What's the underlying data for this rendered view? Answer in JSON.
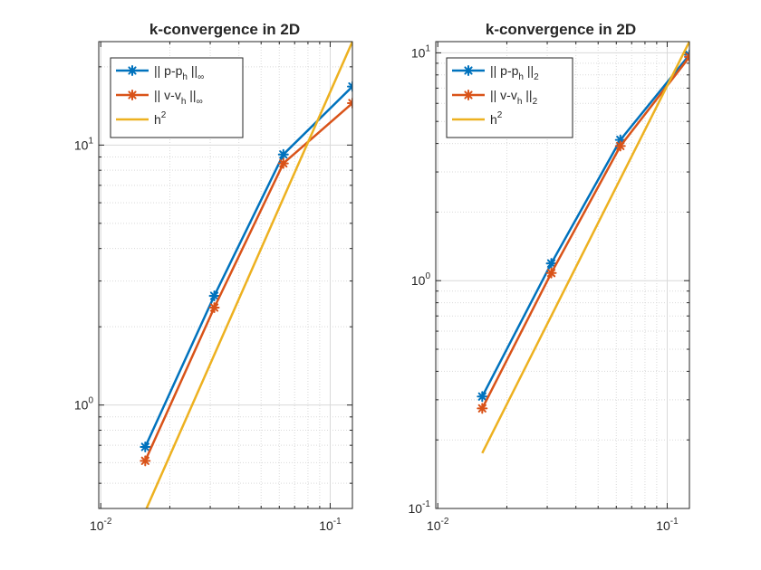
{
  "figure": {
    "colors": {
      "series_1": "#0072BD",
      "series_2": "#D95319",
      "series_3": "#EDB120",
      "grid": "#d9d9d9",
      "axis": "#262626"
    }
  },
  "chart_data": [
    {
      "type": "line",
      "title": "k-convergence in 2D",
      "xlabel": "",
      "ylabel": "",
      "xscale": "log",
      "yscale": "log",
      "xlim": [
        0.0098,
        0.125
      ],
      "ylim": [
        0.4,
        25
      ],
      "grid": true,
      "minor_grid": true,
      "legend_position": "top-left",
      "x_ticks": [
        {
          "label_base": "10",
          "label_exp": "-2",
          "value": 0.01
        },
        {
          "label_base": "10",
          "label_exp": "-1",
          "value": 0.1
        }
      ],
      "y_ticks": [
        {
          "label_base": "10",
          "label_exp": "0",
          "value": 1
        },
        {
          "label_base": "10",
          "label_exp": "1",
          "value": 10
        }
      ],
      "series": [
        {
          "name_prefix": "|| p-p",
          "name_sub": "h",
          "name_suffix": " ||",
          "name_norm": "∞",
          "marker": "asterisk",
          "color_key": "series_1",
          "x": [
            0.015625,
            0.03125,
            0.0625,
            0.125
          ],
          "y": [
            0.69,
            2.63,
            9.2,
            16.8
          ]
        },
        {
          "name_prefix": "|| v-v",
          "name_sub": "h",
          "name_suffix": " ||",
          "name_norm": "∞",
          "marker": "asterisk",
          "color_key": "series_2",
          "x": [
            0.015625,
            0.03125,
            0.0625,
            0.125
          ],
          "y": [
            0.61,
            2.37,
            8.5,
            14.5
          ]
        },
        {
          "name_prefix": "h",
          "name_sup": "2",
          "marker": "none",
          "color_key": "series_3",
          "x": [
            0.015625,
            0.125
          ],
          "y": [
            0.39,
            25.0
          ]
        }
      ]
    },
    {
      "type": "line",
      "title": "k-convergence in 2D",
      "xlabel": "",
      "ylabel": "",
      "xscale": "log",
      "yscale": "log",
      "xlim": [
        0.0098,
        0.125
      ],
      "ylim": [
        0.1,
        11.2
      ],
      "grid": true,
      "minor_grid": true,
      "legend_position": "top-left",
      "x_ticks": [
        {
          "label_base": "10",
          "label_exp": "-2",
          "value": 0.01
        },
        {
          "label_base": "10",
          "label_exp": "-1",
          "value": 0.1
        }
      ],
      "y_ticks": [
        {
          "label_base": "10",
          "label_exp": "-1",
          "value": 0.1
        },
        {
          "label_base": "10",
          "label_exp": "0",
          "value": 1
        },
        {
          "label_base": "10",
          "label_exp": "1",
          "value": 10
        }
      ],
      "series": [
        {
          "name_prefix": "|| p-p",
          "name_sub": "h",
          "name_suffix": " ||",
          "name_norm": "2",
          "marker": "asterisk",
          "color_key": "series_1",
          "x": [
            0.015625,
            0.03125,
            0.0625,
            0.125
          ],
          "y": [
            0.31,
            1.19,
            4.15,
            9.8
          ]
        },
        {
          "name_prefix": "|| v-v",
          "name_sub": "h",
          "name_suffix": " ||",
          "name_norm": "2",
          "marker": "asterisk",
          "color_key": "series_2",
          "x": [
            0.015625,
            0.03125,
            0.0625,
            0.125
          ],
          "y": [
            0.275,
            1.08,
            3.9,
            9.6
          ]
        },
        {
          "name_prefix": "h",
          "name_sup": "2",
          "marker": "none",
          "color_key": "series_3",
          "x": [
            0.015625,
            0.125
          ],
          "y": [
            0.175,
            11.2
          ]
        }
      ]
    }
  ]
}
